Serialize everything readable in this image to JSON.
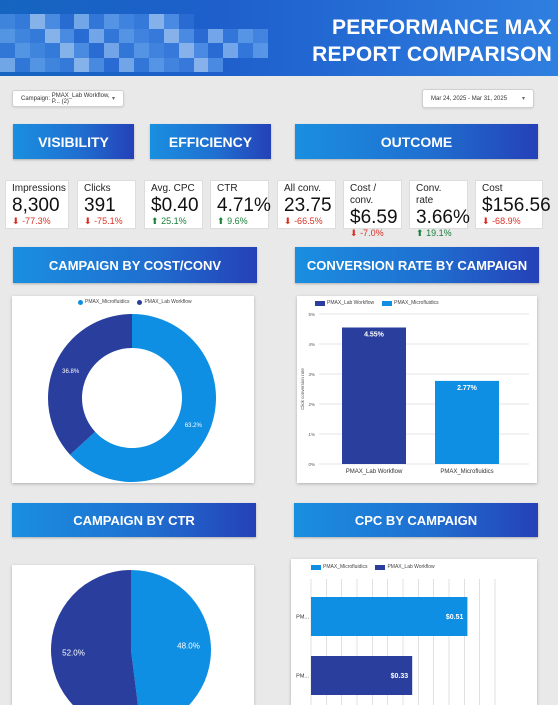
{
  "header": {
    "title_line1": "PERFORMANCE MAX",
    "title_line2": "REPORT COMPARISON"
  },
  "filters": {
    "campaign_label": "Campaign",
    "campaign_value": "PMAX_Lab Workflow, P... (2)",
    "date_range": "Mar 24, 2025 - Mar 31, 2025"
  },
  "sections": {
    "visibility": "VISIBILITY",
    "efficiency": "EFFICIENCY",
    "outcome": "OUTCOME",
    "cost_conv": "CAMPAIGN BY COST/CONV",
    "conv_rate": "CONVERSION RATE BY CAMPAIGN",
    "ctr": "CAMPAIGN BY CTR",
    "cpc": "CPC BY CAMPAIGN"
  },
  "kpis": [
    {
      "label": "Impressions",
      "value": "8,300",
      "delta": "-77.3%",
      "dir": "down"
    },
    {
      "label": "Clicks",
      "value": "391",
      "delta": "-75.1%",
      "dir": "down"
    },
    {
      "label": "Avg. CPC",
      "value": "$0.40",
      "delta": "25.1%",
      "dir": "up"
    },
    {
      "label": "CTR",
      "value": "4.71%",
      "delta": "9.6%",
      "dir": "up"
    },
    {
      "label": "All conv.",
      "value": "23.75",
      "delta": "-66.5%",
      "dir": "down"
    },
    {
      "label": "Cost / conv.",
      "value": "$6.59",
      "delta": "-7.0%",
      "dir": "down"
    },
    {
      "label": "Conv. rate",
      "value": "3.66%",
      "delta": "19.1%",
      "dir": "up"
    },
    {
      "label": "Cost",
      "value": "$156.56",
      "delta": "-68.9%",
      "dir": "down"
    }
  ],
  "colors": {
    "dark_blue": "#2a3f9d",
    "light_blue": "#0f8fe3",
    "negative": "#d93025",
    "positive": "#188038"
  },
  "chart_data": [
    {
      "type": "pie",
      "id": "cost_conv_donut",
      "donut": true,
      "series": [
        {
          "name": "PMAX_Microfluidics",
          "value": 63.2
        },
        {
          "name": "PMAX_Lab Workflow",
          "value": 36.8
        }
      ],
      "labels": [
        "63.2%",
        "36.8%"
      ]
    },
    {
      "type": "bar",
      "id": "conv_rate_bar",
      "categories": [
        "PMAX_Lab Workflow",
        "PMAX_Microfluidics"
      ],
      "series": [
        {
          "name": "PMAX_Lab Workflow",
          "values": [
            4.55,
            null
          ]
        },
        {
          "name": "PMAX_Microfluidics",
          "values": [
            null,
            2.77
          ]
        }
      ],
      "data_labels": [
        "4.55%",
        "2.77%"
      ],
      "ylabel": "Click conversion rate",
      "yticks": [
        "0%",
        "1%",
        "2%",
        "3%",
        "4%",
        "5%"
      ],
      "ylim": [
        0,
        5
      ]
    },
    {
      "type": "pie",
      "id": "ctr_pie",
      "donut": false,
      "series": [
        {
          "name": "PMAX_Microfluidics",
          "value": 48.0
        },
        {
          "name": "PMAX_Lab Workflow",
          "value": 52.0
        }
      ],
      "labels": [
        "48.0%",
        "52.0%"
      ]
    },
    {
      "type": "bar",
      "id": "cpc_hbar",
      "orientation": "horizontal",
      "categories": [
        "PM...",
        "PM..."
      ],
      "series": [
        {
          "name": "PMAX_Microfluidics",
          "values": [
            0.51,
            null
          ]
        },
        {
          "name": "PMAX_Lab Workflow",
          "values": [
            null,
            0.33
          ]
        }
      ],
      "data_labels": [
        "$0.51",
        "$0.33"
      ],
      "xlim": [
        0,
        0.6
      ]
    }
  ]
}
